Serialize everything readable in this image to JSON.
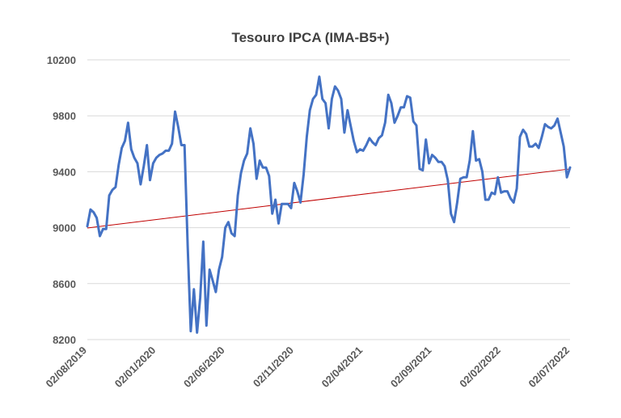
{
  "chart_data": {
    "type": "line",
    "title": "Tesouro IPCA (IMA-B5+)",
    "xlabel": "",
    "ylabel": "",
    "ylim": [
      8200,
      10200
    ],
    "yticks": [
      8200,
      8600,
      9000,
      9400,
      9800,
      10200
    ],
    "xtick_labels": [
      "02/08/2019",
      "02/01/2020",
      "02/06/2020",
      "02/11/2020",
      "02/04/2021",
      "02/09/2021",
      "02/02/2022",
      "02/07/2022"
    ],
    "grid": "horizontal",
    "legend": "none",
    "colors": {
      "series": "#4472C4",
      "trend": "#C00000",
      "grid": "#D9D9D9",
      "text": "#595959",
      "title": "#404040"
    },
    "series": [
      {
        "values": [
          9010,
          9130,
          9110,
          9070,
          8940,
          8990,
          8990,
          9230,
          9270,
          9290,
          9450,
          9570,
          9620,
          9750,
          9560,
          9500,
          9460,
          9310,
          9440,
          9590,
          9340,
          9460,
          9500,
          9520,
          9530,
          9550,
          9550,
          9600,
          9830,
          9720,
          9590,
          9590,
          8870,
          8260,
          8560,
          8250,
          8500,
          8900,
          8300,
          8700,
          8620,
          8540,
          8700,
          8790,
          9000,
          9040,
          8960,
          8940,
          9230,
          9390,
          9480,
          9530,
          9710,
          9600,
          9350,
          9480,
          9430,
          9430,
          9370,
          9100,
          9200,
          9030,
          9170,
          9170,
          9170,
          9140,
          9320,
          9260,
          9180,
          9380,
          9650,
          9840,
          9920,
          9950,
          10080,
          9920,
          9890,
          9710,
          9920,
          10010,
          9980,
          9920,
          9680,
          9840,
          9730,
          9620,
          9540,
          9560,
          9550,
          9590,
          9640,
          9610,
          9590,
          9640,
          9660,
          9750,
          9950,
          9890,
          9750,
          9800,
          9860,
          9860,
          9940,
          9930,
          9760,
          9730,
          9420,
          9410,
          9630,
          9460,
          9520,
          9500,
          9470,
          9470,
          9440,
          9340,
          9100,
          9040,
          9180,
          9350,
          9360,
          9360,
          9480,
          9690,
          9480,
          9490,
          9400,
          9200,
          9200,
          9250,
          9240,
          9360,
          9250,
          9260,
          9260,
          9210,
          9180,
          9280,
          9650,
          9700,
          9670,
          9580,
          9580,
          9600,
          9570,
          9650,
          9740,
          9720,
          9710,
          9730,
          9780,
          9680,
          9580,
          9360,
          9430
        ]
      }
    ],
    "trendline": {
      "start": 8998,
      "end": 9420
    }
  }
}
